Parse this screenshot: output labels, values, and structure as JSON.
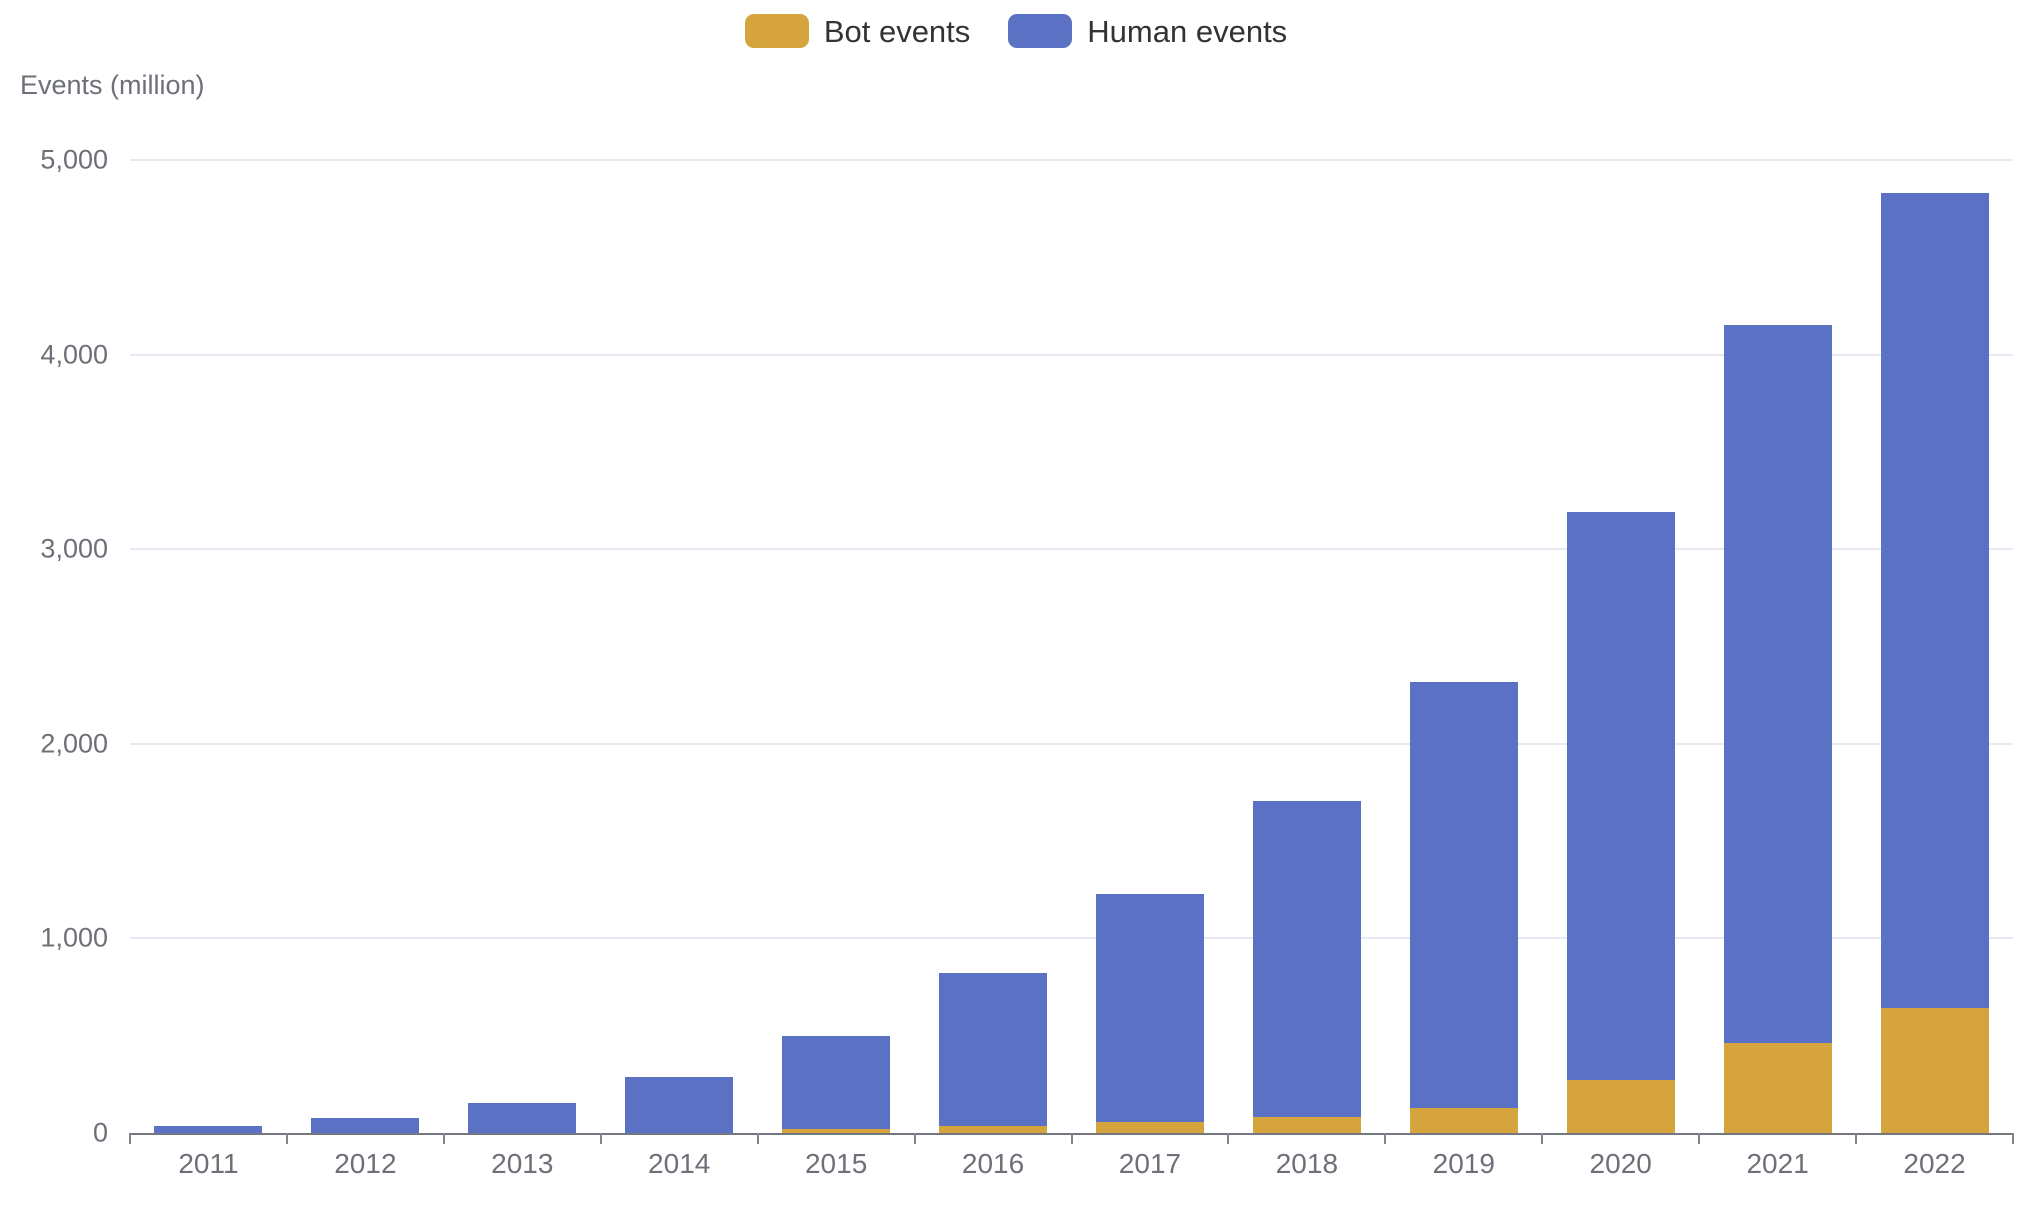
{
  "chart_data": {
    "type": "bar",
    "stacked": true,
    "title": "",
    "ylabel": "Events (million)",
    "xlabel": "",
    "categories": [
      "2011",
      "2012",
      "2013",
      "2014",
      "2015",
      "2016",
      "2017",
      "2018",
      "2019",
      "2020",
      "2021",
      "2022"
    ],
    "series": [
      {
        "name": "Bot events",
        "color": "#D6A43D",
        "values": [
          0,
          0,
          0,
          0,
          20,
          35,
          55,
          80,
          130,
          270,
          460,
          640
        ]
      },
      {
        "name": "Human events",
        "color": "#5B71C4",
        "values": [
          35,
          75,
          155,
          290,
          480,
          785,
          1175,
          1625,
          2190,
          2920,
          3690,
          4190
        ]
      }
    ],
    "ylim": [
      0,
      5000
    ],
    "yticks": [
      {
        "value": 0,
        "label": "0"
      },
      {
        "value": 1000,
        "label": "1,000"
      },
      {
        "value": 2000,
        "label": "2,000"
      },
      {
        "value": 3000,
        "label": "3,000"
      },
      {
        "value": 4000,
        "label": "4,000"
      },
      {
        "value": 5000,
        "label": "5,000"
      }
    ],
    "grid": true,
    "legend_position": "top",
    "colors": {
      "axis_line": "#75777e",
      "gridline": "#E6E9F3",
      "tick_label": "#6E7079",
      "legend_text": "#333333",
      "background": "#ffffff"
    }
  }
}
